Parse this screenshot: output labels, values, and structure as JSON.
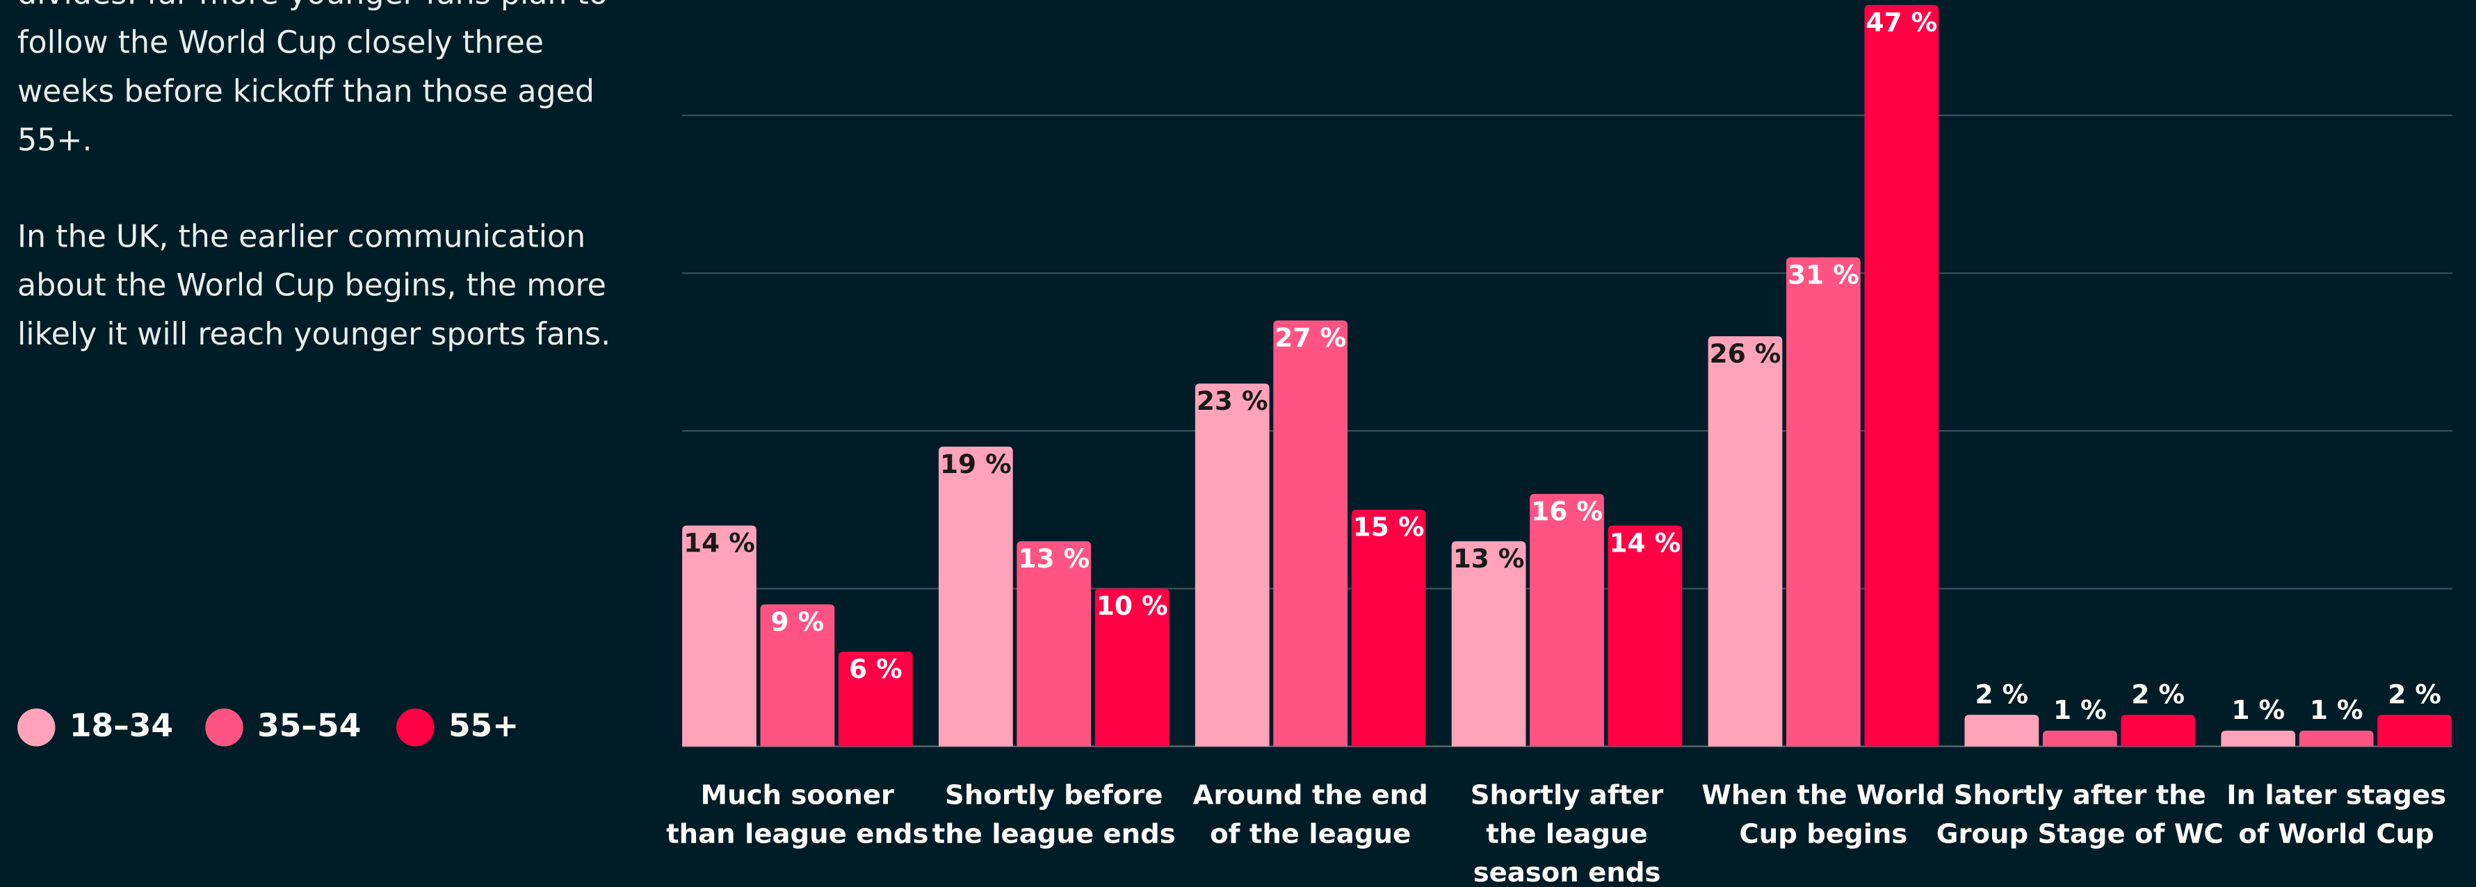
{
  "text": {
    "paragraphs": [
      [
        "divides: far more younger fans plan to",
        "follow the World Cup closely three",
        "weeks before kickoff than those aged",
        "55+."
      ],
      [
        "In the UK, the earlier communication",
        "about the World Cup begins, the more",
        "likely it will reach younger sports fans."
      ]
    ]
  },
  "chart_data": {
    "type": "bar",
    "categories": [
      [
        "Much sooner",
        "than league ends"
      ],
      [
        "Shortly before",
        "the league ends"
      ],
      [
        "Around the end",
        "of the league"
      ],
      [
        "Shortly after",
        "the league",
        "season ends"
      ],
      [
        "When the World",
        "Cup begins"
      ],
      [
        "Shortly after the",
        "Group Stage of WC"
      ],
      [
        "In later stages",
        "of World Cup"
      ]
    ],
    "series": [
      {
        "name": "18–34",
        "color": "#ffa3bb",
        "values": [
          14,
          19,
          23,
          13,
          26,
          2,
          1
        ],
        "value_labels": [
          "14 %",
          "19 %",
          "23 %",
          "13 %",
          "26 %",
          "2 %",
          "1 %"
        ]
      },
      {
        "name": "35–54",
        "color": "#ff5483",
        "values": [
          9,
          13,
          27,
          16,
          31,
          1,
          1
        ],
        "value_labels": [
          "9 %",
          "13 %",
          "27 %",
          "16 %",
          "31 %",
          "1 %",
          "1 %"
        ]
      },
      {
        "name": "55+",
        "color": "#ff0045",
        "values": [
          6,
          10,
          15,
          14,
          47,
          2,
          2
        ],
        "value_labels": [
          "6 %",
          "10 %",
          "15 %",
          "14 %",
          "47 %",
          "2 %",
          "2 %"
        ]
      }
    ],
    "ylim": [
      0,
      47.3
    ],
    "yticks": [
      0,
      10,
      20,
      30,
      40
    ],
    "grid": true
  }
}
